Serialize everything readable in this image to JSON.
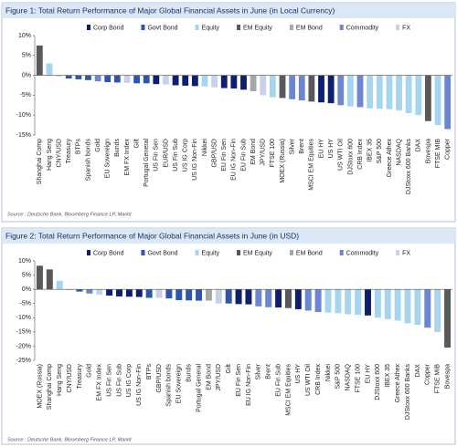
{
  "chart_data": [
    {
      "type": "bar",
      "title": "Figure 1: Total Return Performance of Major Global Financial Assets in June (in Local Currency)",
      "source": "Source : Deutsche Bank, Bloomberg Finance LP, Markit",
      "legend": [
        {
          "name": "Corp Bond",
          "color": "#0d1f6e"
        },
        {
          "name": "Govt Bond",
          "color": "#2f56ad"
        },
        {
          "name": "Equity",
          "color": "#a7d5ef"
        },
        {
          "name": "EM Equity",
          "color": "#595959"
        },
        {
          "name": "EM Bond",
          "color": "#a6a6a6"
        },
        {
          "name": "Commodity",
          "color": "#6c86cf"
        },
        {
          "name": "FX",
          "color": "#c7d2e8"
        }
      ],
      "categories": [
        "Shanghai Comp",
        "Hang Seng",
        "CNY/USD",
        "Treasury",
        "BTPs",
        "Spanish bonds",
        "Gold",
        "EU Sovereign",
        "Bunds",
        "EM FX Index",
        "Gilt",
        "Portugal General",
        "US Fin Sen",
        "EUR/USD",
        "US Fin Sub",
        "US IG Corp",
        "US IG Non-Fin",
        "Nikkei",
        "GBP/USD",
        "EU Fin Sen",
        "EU IG Non-Fin",
        "EU Fin Sub",
        "EM Bond",
        "JPY/USD",
        "FTSE 100",
        "MOEX (Russia)",
        "Silver",
        "Brent",
        "MSCI EM Equities",
        "EU HY",
        "US HY",
        "US WTI Oil",
        "DJStoxx 600",
        "CRB Index",
        "IBEX 35",
        "S&P 500",
        "Greece Athex",
        "NASDAQ",
        "DJStoxx 600 Banks",
        "DAX",
        "Bovespa",
        "FTSE MIB",
        "Copper"
      ],
      "values": [
        7.5,
        3,
        -0.3,
        -0.8,
        -1.0,
        -1.2,
        -1.5,
        -1.7,
        -1.8,
        -1.9,
        -2.0,
        -2.0,
        -2.2,
        -2.3,
        -2.5,
        -2.6,
        -2.7,
        -2.8,
        -3.0,
        -3.2,
        -3.3,
        -3.6,
        -4.0,
        -5.0,
        -5.5,
        -5.7,
        -6.0,
        -6.3,
        -6.6,
        -6.8,
        -7.0,
        -7.5,
        -7.8,
        -8.0,
        -8.3,
        -8.4,
        -8.5,
        -8.8,
        -9.5,
        -10.0,
        -11.5,
        -12.5,
        -13.5
      ],
      "colors": [
        "#595959",
        "#a7d5ef",
        "#c7d2e8",
        "#2f56ad",
        "#2f56ad",
        "#2f56ad",
        "#6c86cf",
        "#2f56ad",
        "#2f56ad",
        "#c7d2e8",
        "#2f56ad",
        "#2f56ad",
        "#0d1f6e",
        "#c7d2e8",
        "#0d1f6e",
        "#0d1f6e",
        "#0d1f6e",
        "#a7d5ef",
        "#c7d2e8",
        "#0d1f6e",
        "#0d1f6e",
        "#0d1f6e",
        "#a6a6a6",
        "#c7d2e8",
        "#a7d5ef",
        "#595959",
        "#6c86cf",
        "#6c86cf",
        "#595959",
        "#0d1f6e",
        "#0d1f6e",
        "#6c86cf",
        "#a7d5ef",
        "#6c86cf",
        "#a7d5ef",
        "#a7d5ef",
        "#a7d5ef",
        "#a7d5ef",
        "#a7d5ef",
        "#a7d5ef",
        "#595959",
        "#a7d5ef",
        "#6c86cf"
      ],
      "ylim": [
        -15,
        10
      ],
      "yticks": [
        {
          "value": -15,
          "label": "-15%"
        },
        {
          "value": -10,
          "label": "-10%"
        },
        {
          "value": -5,
          "label": "-5%"
        },
        {
          "value": 0,
          "label": "0%"
        },
        {
          "value": 5,
          "label": "5%"
        },
        {
          "value": 10,
          "label": "10%"
        }
      ]
    },
    {
      "type": "bar",
      "title": "Figure 2: Total Return Performance of Major Global Financial Assets in June (in USD)",
      "source": "Source : Deutsche Bank, Bloomberg Finance LP, Markit",
      "legend": [
        {
          "name": "Corp Bond",
          "color": "#0d1f6e"
        },
        {
          "name": "Govt Bond",
          "color": "#2f56ad"
        },
        {
          "name": "Equity",
          "color": "#a7d5ef"
        },
        {
          "name": "EM Equity",
          "color": "#595959"
        },
        {
          "name": "EM Bond",
          "color": "#a6a6a6"
        },
        {
          "name": "Commodity",
          "color": "#6c86cf"
        },
        {
          "name": "FX",
          "color": "#c7d2e8"
        }
      ],
      "categories": [
        "MOEX (Russia)",
        "Shanghai Comp",
        "Hang Seng",
        "CNY/USD",
        "Treasury",
        "Gold",
        "EM FX Index",
        "US Fin Sen",
        "US Fin Sub",
        "US IG Corp",
        "US IG Non-Fin",
        "BTPs",
        "GBP/USD",
        "Spanish bonds",
        "EU Sovereign",
        "Bunds",
        "Portugal General",
        "EM Bond",
        "JPY/USD",
        "Gilt",
        "EU Fin Sen",
        "EU IG Non-Fin",
        "Silver",
        "Brent",
        "EU Fin Sub",
        "MSCI EM Equities",
        "US HY",
        "US WTI Oil",
        "CRB Index",
        "Nikkei",
        "S&P 500",
        "NASDAQ",
        "FTSE 100",
        "EU HY",
        "DJStoxx 600",
        "IBEX 35",
        "Greece Athex",
        "DJStoxx 600 Banks",
        "DAX",
        "Copper",
        "FTSE MIB",
        "Bovespa"
      ],
      "values": [
        8.3,
        7,
        3,
        -0.3,
        -0.8,
        -1.5,
        -1.9,
        -2.2,
        -2.5,
        -2.6,
        -2.7,
        -3.0,
        -3.0,
        -3.2,
        -3.8,
        -3.9,
        -4.0,
        -4.0,
        -5.0,
        -5.0,
        -5.2,
        -5.3,
        -6.0,
        -6.3,
        -6.4,
        -6.6,
        -7.0,
        -7.5,
        -8.0,
        -8.2,
        -8.4,
        -8.8,
        -9.0,
        -9.2,
        -10.0,
        -10.5,
        -11.0,
        -12.0,
        -12.5,
        -13.5,
        -15.0,
        -20.5
      ],
      "colors": [
        "#595959",
        "#595959",
        "#a7d5ef",
        "#c7d2e8",
        "#2f56ad",
        "#6c86cf",
        "#c7d2e8",
        "#0d1f6e",
        "#0d1f6e",
        "#0d1f6e",
        "#0d1f6e",
        "#2f56ad",
        "#c7d2e8",
        "#2f56ad",
        "#2f56ad",
        "#2f56ad",
        "#2f56ad",
        "#a6a6a6",
        "#c7d2e8",
        "#2f56ad",
        "#0d1f6e",
        "#0d1f6e",
        "#6c86cf",
        "#6c86cf",
        "#0d1f6e",
        "#595959",
        "#0d1f6e",
        "#6c86cf",
        "#6c86cf",
        "#a7d5ef",
        "#a7d5ef",
        "#a7d5ef",
        "#a7d5ef",
        "#0d1f6e",
        "#a7d5ef",
        "#a7d5ef",
        "#a7d5ef",
        "#a7d5ef",
        "#a7d5ef",
        "#6c86cf",
        "#a7d5ef",
        "#595959"
      ],
      "ylim": [
        -25,
        10
      ],
      "yticks": [
        {
          "value": -25,
          "label": "-25%"
        },
        {
          "value": -20,
          "label": "-20%"
        },
        {
          "value": -15,
          "label": "-15%"
        },
        {
          "value": -10,
          "label": "-10%"
        },
        {
          "value": -5,
          "label": "-5%"
        },
        {
          "value": 0,
          "label": "0%"
        },
        {
          "value": 5,
          "label": "5%"
        },
        {
          "value": 10,
          "label": "10%"
        }
      ]
    }
  ]
}
